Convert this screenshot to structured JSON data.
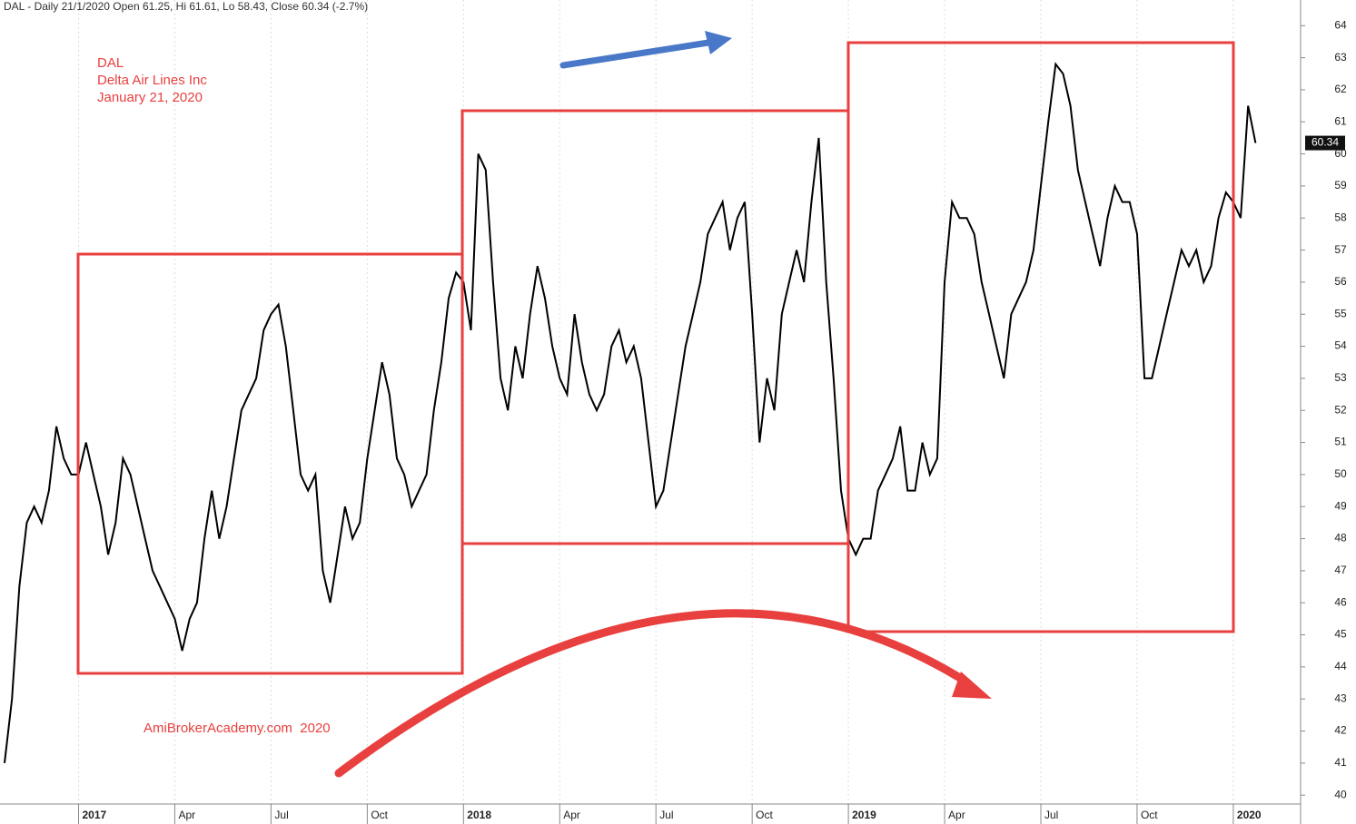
{
  "chart_data": {
    "type": "line",
    "title": "DAL - Daily 21/1/2020 Open 61.25, Hi 61.61, Lo 58.43, Close 60.34 (-2.7%)",
    "annotations": [
      "DAL",
      "Delta Air Lines Inc",
      "January 21, 2020",
      "AmiBrokerAcademy.com  2020"
    ],
    "color": "#000000",
    "grid": true,
    "categories": [
      null,
      null,
      null,
      null,
      null,
      null,
      null,
      null,
      null,
      null,
      "2017",
      null,
      null,
      null,
      null,
      null,
      null,
      null,
      null,
      null,
      null,
      null,
      null,
      "Apr",
      null,
      null,
      null,
      null,
      null,
      null,
      null,
      null,
      null,
      null,
      null,
      null,
      "Jul",
      null,
      null,
      null,
      null,
      null,
      null,
      null,
      null,
      null,
      null,
      null,
      null,
      "Oct",
      null,
      null,
      null,
      null,
      null,
      null,
      null,
      null,
      null,
      null,
      null,
      null,
      "2018",
      null,
      null,
      null,
      null,
      null,
      null,
      null,
      null,
      null,
      null,
      null,
      null,
      "Apr",
      null,
      null,
      null,
      null,
      null,
      null,
      null,
      null,
      null,
      null,
      null,
      null,
      "Jul",
      null,
      null,
      null,
      null,
      null,
      null,
      null,
      null,
      null,
      null,
      null,
      null,
      "Oct",
      null,
      null,
      null,
      null,
      null,
      null,
      null,
      null,
      null,
      null,
      null,
      null,
      "2019",
      null,
      null,
      null,
      null,
      null,
      null,
      null,
      null,
      null,
      null,
      null,
      null,
      "Apr",
      null,
      null,
      null,
      null,
      null,
      null,
      null,
      null,
      null,
      null,
      null,
      null,
      "Jul",
      null,
      null,
      null,
      null,
      null,
      null,
      null,
      null,
      null,
      null,
      null,
      null,
      "Oct",
      null,
      null,
      null,
      null,
      null,
      null,
      null,
      null,
      null,
      null,
      null,
      null,
      "2020",
      null,
      null,
      null
    ],
    "values": [
      41,
      43,
      46.5,
      48.5,
      49,
      48.5,
      49.5,
      51.5,
      50.5,
      50,
      50,
      51,
      50,
      49,
      47.5,
      48.5,
      50.5,
      50,
      49,
      48,
      47,
      46.5,
      46,
      45.5,
      44.5,
      45.5,
      46,
      48,
      49.5,
      48,
      49,
      50.5,
      52,
      52.5,
      53,
      54.5,
      55,
      55.3,
      54,
      52,
      50,
      49.5,
      50,
      47,
      46,
      47.5,
      49,
      48,
      48.5,
      50.5,
      52,
      53.5,
      52.5,
      50.5,
      50,
      49,
      49.5,
      50,
      52,
      53.5,
      55.5,
      56.3,
      56,
      54.5,
      60,
      59.5,
      56,
      53,
      52,
      54,
      53,
      55,
      56.5,
      55.5,
      54,
      53,
      52.5,
      55,
      53.5,
      52.5,
      52,
      52.5,
      54,
      54.5,
      53.5,
      54,
      53,
      51,
      49,
      49.5,
      51,
      52.5,
      54,
      55,
      56,
      57.5,
      58,
      58.5,
      57,
      58,
      58.5,
      55,
      51,
      53,
      52,
      55,
      56,
      57,
      56,
      58.5,
      60.5,
      56,
      53,
      49.5,
      48,
      47.5,
      48,
      48,
      49.5,
      50,
      50.5,
      51.5,
      49.5,
      49.5,
      51,
      50,
      50.5,
      56,
      58.5,
      58,
      58,
      57.5,
      56,
      55,
      54,
      53,
      55,
      55.5,
      56,
      57,
      59,
      61,
      62.8,
      62.5,
      61.5,
      59.5,
      58.5,
      57.5,
      56.5,
      58,
      59,
      58.5,
      58.5,
      57.5,
      53,
      53,
      54,
      55,
      56,
      57,
      56.5,
      57,
      56,
      56.5,
      58,
      58.8,
      58.5,
      58,
      61.5,
      60.34
    ],
    "ylim": [
      39.1,
      64.8
    ],
    "yticks": [
      40,
      41,
      42,
      43,
      44,
      45,
      46,
      47,
      48,
      49,
      50,
      51,
      52,
      53,
      54,
      55,
      56,
      57,
      58,
      59,
      60,
      61,
      62,
      63,
      64
    ]
  }
}
